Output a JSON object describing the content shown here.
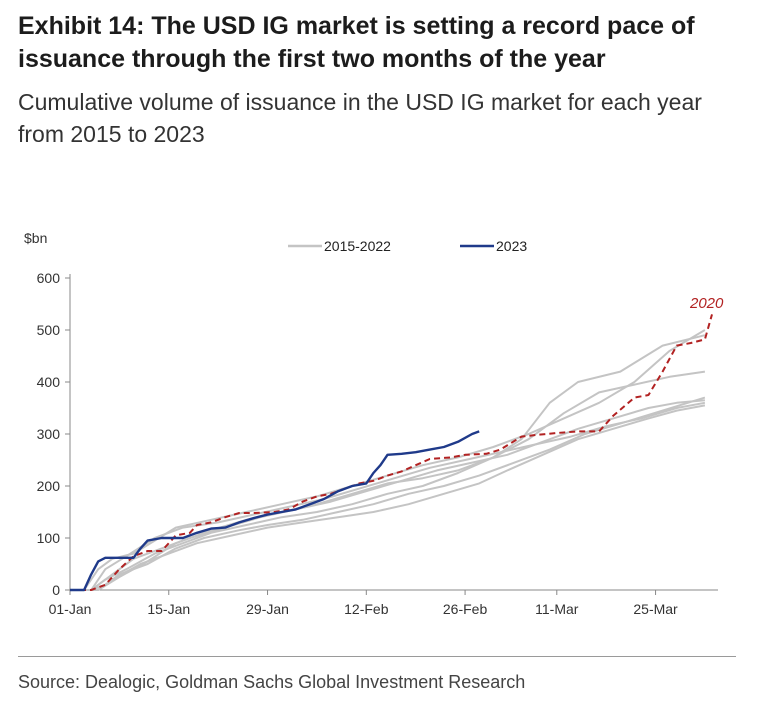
{
  "title": "Exhibit 14: The USD IG market is setting a record pace of issuance through the first two months of the year",
  "subtitle": "Cumulative volume of issuance in the USD IG market for each year from 2015 to 2023",
  "source": "Source: Dealogic, Goldman Sachs Global Investment Research",
  "chart_data": {
    "type": "line",
    "ylabel": "$bn",
    "ylim": [
      0,
      600
    ],
    "yticks": [
      0,
      100,
      200,
      300,
      400,
      500,
      600
    ],
    "xlim_days": [
      0,
      91
    ],
    "xtick_labels": [
      "01-Jan",
      "15-Jan",
      "29-Jan",
      "12-Feb",
      "26-Feb",
      "11-Mar",
      "25-Mar"
    ],
    "xtick_days": [
      0,
      14,
      28,
      42,
      56,
      69,
      83
    ],
    "legend": [
      {
        "label": "2015-2022",
        "color": "#c4c4c4"
      },
      {
        "label": "2023",
        "color": "#1f3a8a"
      }
    ],
    "annotation": {
      "text": "2020",
      "color": "#b22222"
    },
    "series": [
      {
        "name": "2015-2022",
        "color": "#c4c4c4",
        "points": [
          [
            0,
            0
          ],
          [
            2,
            0
          ],
          [
            4,
            40
          ],
          [
            6,
            60
          ],
          [
            9,
            70
          ],
          [
            12,
            95
          ],
          [
            15,
            120
          ],
          [
            20,
            135
          ],
          [
            25,
            150
          ],
          [
            30,
            165
          ],
          [
            35,
            180
          ],
          [
            40,
            200
          ],
          [
            45,
            220
          ],
          [
            50,
            240
          ],
          [
            55,
            255
          ],
          [
            60,
            275
          ],
          [
            65,
            300
          ],
          [
            70,
            330
          ],
          [
            75,
            360
          ],
          [
            80,
            400
          ],
          [
            85,
            460
          ],
          [
            90,
            500
          ]
        ]
      },
      {
        "name": "2015-2022",
        "color": "#c4c4c4",
        "points": [
          [
            0,
            0
          ],
          [
            3,
            0
          ],
          [
            5,
            20
          ],
          [
            8,
            40
          ],
          [
            12,
            70
          ],
          [
            16,
            90
          ],
          [
            20,
            110
          ],
          [
            25,
            125
          ],
          [
            30,
            140
          ],
          [
            35,
            150
          ],
          [
            40,
            165
          ],
          [
            45,
            185
          ],
          [
            50,
            200
          ],
          [
            55,
            225
          ],
          [
            60,
            255
          ],
          [
            64,
            290
          ],
          [
            68,
            360
          ],
          [
            72,
            400
          ],
          [
            78,
            420
          ],
          [
            84,
            470
          ],
          [
            90,
            490
          ]
        ]
      },
      {
        "name": "2015-2022",
        "color": "#c4c4c4",
        "points": [
          [
            0,
            0
          ],
          [
            3,
            0
          ],
          [
            5,
            10
          ],
          [
            7,
            30
          ],
          [
            11,
            50
          ],
          [
            15,
            80
          ],
          [
            19,
            100
          ],
          [
            24,
            115
          ],
          [
            28,
            125
          ],
          [
            33,
            135
          ],
          [
            38,
            150
          ],
          [
            43,
            165
          ],
          [
            48,
            185
          ],
          [
            53,
            200
          ],
          [
            58,
            220
          ],
          [
            63,
            245
          ],
          [
            68,
            270
          ],
          [
            73,
            300
          ],
          [
            78,
            320
          ],
          [
            84,
            345
          ],
          [
            90,
            370
          ]
        ]
      },
      {
        "name": "2015-2022",
        "color": "#c4c4c4",
        "points": [
          [
            0,
            0
          ],
          [
            4,
            0
          ],
          [
            6,
            20
          ],
          [
            10,
            50
          ],
          [
            14,
            70
          ],
          [
            18,
            90
          ],
          [
            23,
            105
          ],
          [
            28,
            120
          ],
          [
            33,
            130
          ],
          [
            38,
            140
          ],
          [
            43,
            150
          ],
          [
            48,
            165
          ],
          [
            53,
            185
          ],
          [
            58,
            205
          ],
          [
            62,
            230
          ],
          [
            67,
            260
          ],
          [
            72,
            290
          ],
          [
            77,
            310
          ],
          [
            82,
            330
          ],
          [
            86,
            345
          ],
          [
            90,
            355
          ]
        ]
      },
      {
        "name": "2015-2022",
        "color": "#c4c4c4",
        "points": [
          [
            0,
            0
          ],
          [
            3,
            0
          ],
          [
            6,
            30
          ],
          [
            9,
            60
          ],
          [
            13,
            80
          ],
          [
            17,
            100
          ],
          [
            22,
            120
          ],
          [
            27,
            140
          ],
          [
            32,
            155
          ],
          [
            37,
            170
          ],
          [
            42,
            190
          ],
          [
            47,
            210
          ],
          [
            52,
            230
          ],
          [
            57,
            245
          ],
          [
            62,
            260
          ],
          [
            67,
            285
          ],
          [
            72,
            310
          ],
          [
            77,
            330
          ],
          [
            82,
            350
          ],
          [
            86,
            360
          ],
          [
            90,
            365
          ]
        ]
      },
      {
        "name": "2015-2022",
        "color": "#c4c4c4",
        "points": [
          [
            0,
            0
          ],
          [
            4,
            0
          ],
          [
            7,
            25
          ],
          [
            11,
            55
          ],
          [
            15,
            90
          ],
          [
            20,
            115
          ],
          [
            25,
            135
          ],
          [
            30,
            150
          ],
          [
            35,
            165
          ],
          [
            40,
            185
          ],
          [
            45,
            205
          ],
          [
            50,
            215
          ],
          [
            55,
            230
          ],
          [
            60,
            255
          ],
          [
            65,
            290
          ],
          [
            70,
            340
          ],
          [
            75,
            380
          ],
          [
            80,
            395
          ],
          [
            85,
            410
          ],
          [
            90,
            420
          ]
        ]
      },
      {
        "name": "2015-2022",
        "color": "#c4c4c4",
        "points": [
          [
            0,
            0
          ],
          [
            3,
            0
          ],
          [
            5,
            40
          ],
          [
            8,
            65
          ],
          [
            12,
            100
          ],
          [
            16,
            120
          ],
          [
            21,
            130
          ],
          [
            26,
            145
          ],
          [
            31,
            160
          ],
          [
            36,
            175
          ],
          [
            41,
            195
          ],
          [
            46,
            215
          ],
          [
            51,
            235
          ],
          [
            56,
            250
          ],
          [
            61,
            265
          ],
          [
            66,
            280
          ],
          [
            71,
            295
          ],
          [
            76,
            315
          ],
          [
            81,
            330
          ],
          [
            86,
            350
          ],
          [
            90,
            360
          ]
        ]
      },
      {
        "name": "2020",
        "color": "#b22222",
        "dashed": true,
        "points": [
          [
            0,
            0
          ],
          [
            3,
            0
          ],
          [
            5,
            10
          ],
          [
            7,
            40
          ],
          [
            9,
            65
          ],
          [
            11,
            75
          ],
          [
            13,
            75
          ],
          [
            15,
            105
          ],
          [
            17,
            110
          ],
          [
            18,
            125
          ],
          [
            20,
            130
          ],
          [
            22,
            140
          ],
          [
            24,
            148
          ],
          [
            26,
            148
          ],
          [
            29,
            150
          ],
          [
            31,
            155
          ],
          [
            33,
            170
          ],
          [
            35,
            180
          ],
          [
            37,
            185
          ],
          [
            39,
            195
          ],
          [
            41,
            205
          ],
          [
            43,
            210
          ],
          [
            45,
            220
          ],
          [
            47,
            228
          ],
          [
            49,
            240
          ],
          [
            51,
            252
          ],
          [
            54,
            255
          ],
          [
            56,
            260
          ],
          [
            59,
            262
          ],
          [
            61,
            270
          ],
          [
            64,
            295
          ],
          [
            66,
            298
          ],
          [
            69,
            302
          ],
          [
            72,
            305
          ],
          [
            75,
            305
          ],
          [
            77,
            335
          ],
          [
            80,
            370
          ],
          [
            82,
            375
          ],
          [
            84,
            420
          ],
          [
            86,
            470
          ],
          [
            88,
            475
          ],
          [
            90,
            482
          ],
          [
            91,
            530
          ]
        ]
      },
      {
        "name": "2023",
        "color": "#1f3a8a",
        "points": [
          [
            0,
            0
          ],
          [
            2,
            0
          ],
          [
            3,
            30
          ],
          [
            4,
            55
          ],
          [
            5,
            62
          ],
          [
            7,
            62
          ],
          [
            9,
            62
          ],
          [
            10,
            80
          ],
          [
            11,
            95
          ],
          [
            13,
            100
          ],
          [
            16,
            100
          ],
          [
            18,
            110
          ],
          [
            20,
            118
          ],
          [
            22,
            120
          ],
          [
            24,
            130
          ],
          [
            26,
            138
          ],
          [
            28,
            145
          ],
          [
            30,
            150
          ],
          [
            32,
            155
          ],
          [
            34,
            165
          ],
          [
            36,
            175
          ],
          [
            38,
            190
          ],
          [
            40,
            200
          ],
          [
            42,
            205
          ],
          [
            43,
            225
          ],
          [
            44,
            240
          ],
          [
            45,
            260
          ],
          [
            47,
            262
          ],
          [
            49,
            265
          ],
          [
            51,
            270
          ],
          [
            53,
            275
          ],
          [
            55,
            285
          ],
          [
            57,
            300
          ],
          [
            58,
            305
          ]
        ]
      }
    ]
  }
}
